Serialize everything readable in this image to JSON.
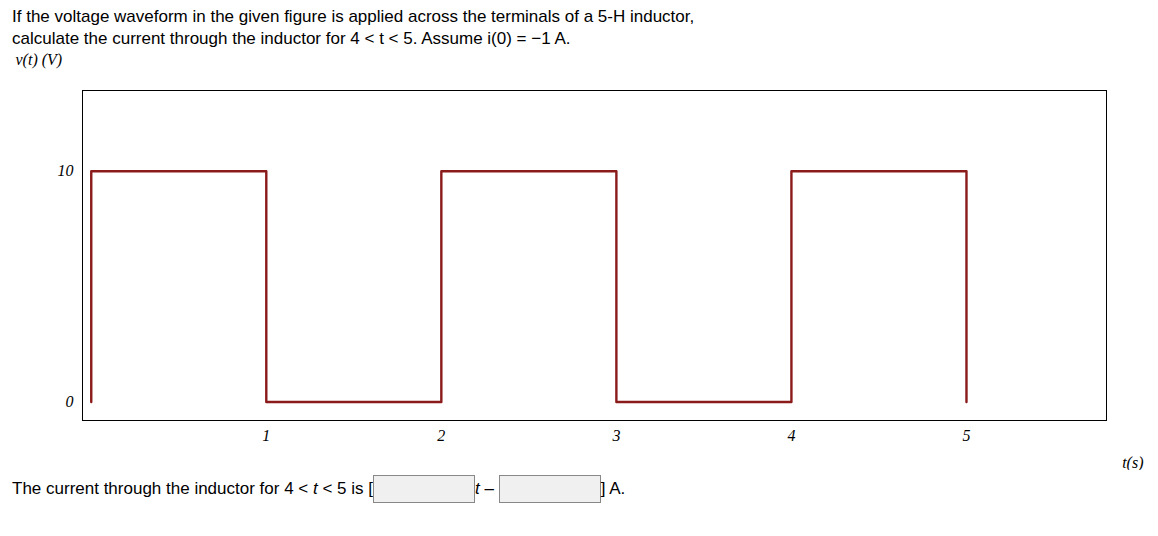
{
  "chart_data": {
    "type": "line",
    "title": "If the voltage waveform in the given figure is applied across the terminals of a 5-H inductor,",
    "subtitle": "calculate the current through the inductor for 4 < t < 5. Assume i(0) = −1 A.",
    "xlabel": "t(s)",
    "ylabel": "v(t) (V)",
    "x": [
      0,
      0,
      1,
      1,
      2,
      2,
      3,
      3,
      4,
      4,
      5,
      5
    ],
    "values": [
      0,
      10,
      10,
      0,
      0,
      10,
      10,
      0,
      0,
      10,
      10,
      0
    ],
    "color": "#8B1A1A",
    "xlim": [
      -0.05,
      5.8
    ],
    "ylim": [
      -0.8,
      13.5
    ],
    "xticks": [
      1,
      2,
      3,
      4,
      5
    ],
    "yticks": [
      0,
      10
    ],
    "grid": false,
    "annotations": [
      "The current through the inductor for 4 < ",
      "t",
      " < 5 is [",
      "t",
      " – ",
      "] A."
    ]
  }
}
